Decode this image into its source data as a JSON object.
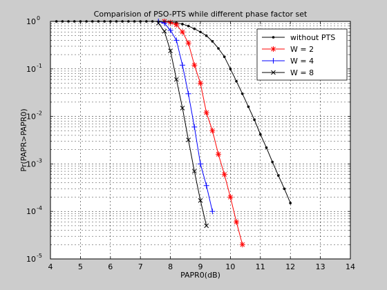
{
  "figure": {
    "background": "#cccccc",
    "axes_background": "#ffffff"
  },
  "chart_data": {
    "type": "line",
    "title": "Comparision of PSO-PTS while different phase factor set",
    "xlabel": "PAPR0(dB)",
    "ylabel": "Pr(PAPR>PAPR0)",
    "xlim": [
      4,
      14
    ],
    "ylim": [
      1e-05,
      1
    ],
    "yscale": "log",
    "grid": true,
    "legend_position": "top-right",
    "x_ticks": [
      4,
      5,
      6,
      7,
      8,
      9,
      10,
      11,
      12,
      13,
      14
    ],
    "x_tick_labels": [
      "4",
      "5",
      "6",
      "7",
      "8",
      "9",
      "10",
      "11",
      "12",
      "13",
      "14"
    ],
    "y_ticks": [
      1e-05,
      0.0001,
      0.001,
      0.01,
      0.1,
      1
    ],
    "y_tick_labels": [
      {
        "base": "10",
        "exp": "-5"
      },
      {
        "base": "10",
        "exp": "-4"
      },
      {
        "base": "10",
        "exp": "-3"
      },
      {
        "base": "10",
        "exp": "-2"
      },
      {
        "base": "10",
        "exp": "-1"
      },
      {
        "base": "10",
        "exp": "0"
      }
    ],
    "series": [
      {
        "name": "without PTS",
        "color": "#000000",
        "marker": "dot",
        "x": [
          4.2,
          4.4,
          4.6,
          4.8,
          5.0,
          5.2,
          5.4,
          5.6,
          5.8,
          6.0,
          6.2,
          6.4,
          6.6,
          6.8,
          7.0,
          7.2,
          7.4,
          7.6,
          7.8,
          8.0,
          8.2,
          8.4,
          8.6,
          8.8,
          9.0,
          9.2,
          9.4,
          9.6,
          9.8,
          10.0,
          10.2,
          10.4,
          10.6,
          10.8,
          11.0,
          11.2,
          11.4,
          11.6,
          11.8,
          12.0
        ],
        "y": [
          1,
          1,
          1,
          1,
          1,
          1,
          1,
          1,
          1,
          1,
          1,
          1,
          1,
          1,
          1,
          1,
          1,
          0.99,
          0.99,
          0.96,
          0.93,
          0.88,
          0.8,
          0.7,
          0.6,
          0.5,
          0.38,
          0.27,
          0.18,
          0.1,
          0.055,
          0.03,
          0.016,
          0.0085,
          0.0042,
          0.0022,
          0.0011,
          0.00057,
          0.0003,
          0.00015
        ]
      },
      {
        "name": "W = 2",
        "color": "#ff0000",
        "marker": "star",
        "x": [
          7.8,
          8.0,
          8.2,
          8.4,
          8.6,
          8.8,
          9.0,
          9.2,
          9.4,
          9.6,
          9.8,
          10.0,
          10.2,
          10.4
        ],
        "y": [
          1,
          0.95,
          0.85,
          0.6,
          0.35,
          0.12,
          0.05,
          0.012,
          0.005,
          0.0016,
          0.0006,
          0.0002,
          6e-05,
          2e-05
        ]
      },
      {
        "name": "W = 4",
        "color": "#0000ff",
        "marker": "plus",
        "x": [
          7.6,
          7.8,
          8.0,
          8.2,
          8.4,
          8.6,
          8.8,
          9.0,
          9.2,
          9.4
        ],
        "y": [
          1,
          0.92,
          0.65,
          0.4,
          0.12,
          0.03,
          0.006,
          0.001,
          0.00035,
          0.0001
        ]
      },
      {
        "name": "W = 8",
        "color": "#000000",
        "marker": "x",
        "x": [
          7.6,
          7.8,
          8.0,
          8.2,
          8.4,
          8.6,
          8.8,
          9.0,
          9.2
        ],
        "y": [
          0.92,
          0.62,
          0.24,
          0.06,
          0.015,
          0.0032,
          0.0007,
          0.00017,
          5e-05
        ]
      }
    ]
  }
}
